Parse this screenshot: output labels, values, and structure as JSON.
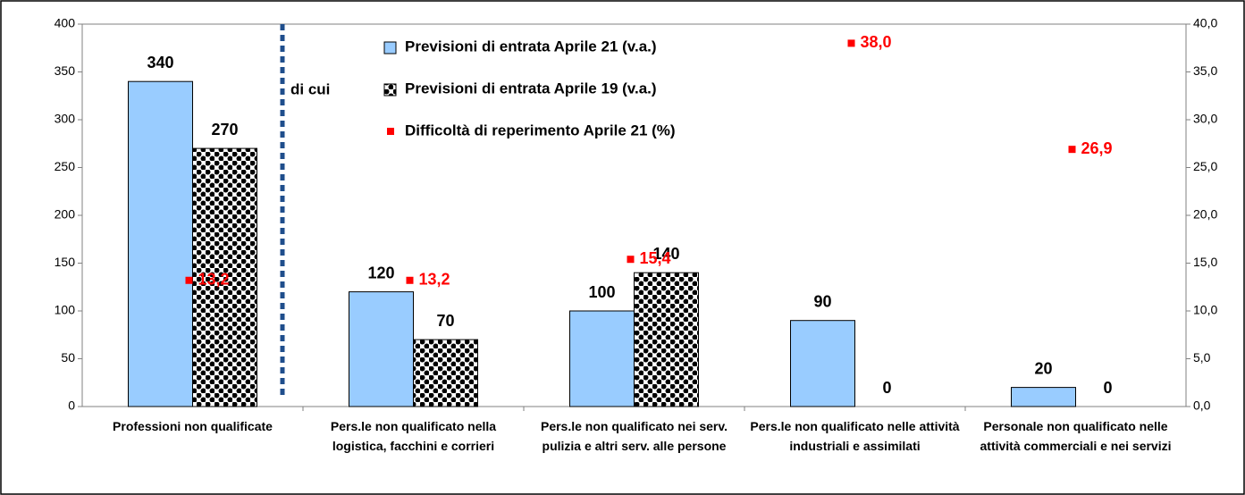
{
  "chart_data": {
    "type": "bar",
    "categories": [
      "Professioni non qualificate",
      "Pers.le non qualificato nella logistica, facchini e corrieri",
      "Pers.le non qualificato nei serv. pulizia e altri serv. alle persone",
      "Pers.le non qualificato nelle attività industriali e assimilati",
      "Personale non qualificato nelle attività commerciali e nei servizi"
    ],
    "series": [
      {
        "name": "Previsioni di entrata Aprile 21 (v.a.)",
        "color": "#99ccff",
        "values": [
          340,
          120,
          100,
          90,
          20
        ]
      },
      {
        "name": "Previsioni di entrata Aprile 19 (v.a.)",
        "color": "#000000",
        "values": [
          270,
          70,
          140,
          0,
          0
        ]
      },
      {
        "name": "Difficoltà di reperimento Aprile 21 (%)",
        "color": "#ff0000",
        "axis": "y2",
        "type": "scatter",
        "values": [
          13.2,
          13.2,
          15.4,
          38.0,
          26.9
        ],
        "value_labels": [
          "13,2",
          "13,2",
          "15,4",
          "38,0",
          "26,9"
        ]
      }
    ],
    "annotations": [
      "di cui"
    ],
    "ylim": [
      0,
      400
    ],
    "yticks": [
      0,
      50,
      100,
      150,
      200,
      250,
      300,
      350,
      400
    ],
    "y2lim": [
      0,
      40
    ],
    "y2ticks": [
      {
        "value": 0,
        "label": "0,0"
      },
      {
        "value": 5,
        "label": "5,0"
      },
      {
        "value": 10,
        "label": "10,0"
      },
      {
        "value": 15,
        "label": "15,0"
      },
      {
        "value": 20,
        "label": "20,0"
      },
      {
        "value": 25,
        "label": "25,0"
      },
      {
        "value": 30,
        "label": "30,0"
      },
      {
        "value": 35,
        "label": "35,0"
      },
      {
        "value": 40,
        "label": "40,0"
      }
    ]
  }
}
